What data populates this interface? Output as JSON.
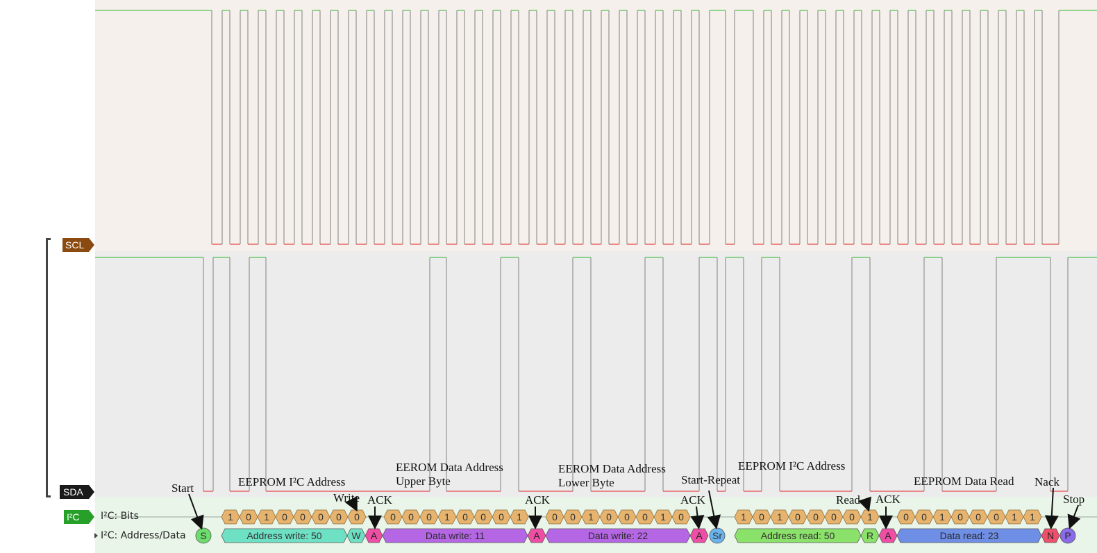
{
  "channels": {
    "scl": "SCL",
    "sda": "SDA",
    "protocol": "I²C"
  },
  "rows": {
    "bits": "I²C: Bits",
    "addr_data": "I²C: Address/Data"
  },
  "colors": {
    "scl_bg": "#f5f0eb",
    "sda_bg": "#ececec",
    "decode_bg": "#e8f5e8",
    "high_line": "#2db82d",
    "low_line": "#e02020",
    "edge": "#808080",
    "bit_cell": "#e6b46e",
    "ack": "#ee4fa5",
    "nack": "#ee4f6a",
    "start": "#6ddc6d",
    "repeat_start": "#6ab3ec",
    "stop": "#8a6be8",
    "addr_write": "#6ee0c4",
    "data_write": "#b566e4",
    "addr_read": "#8be26a",
    "data_read": "#6f8ee6",
    "tag_scl": "#8b4a0f",
    "tag_sda": "#1a1a1a",
    "tag_i2c": "#27a02a"
  },
  "bit_segments": [
    {
      "bits": [
        "1",
        "0",
        "1",
        "0",
        "0",
        "0",
        "0"
      ]
    },
    {
      "bits": [
        "0"
      ]
    },
    {
      "bits": [
        "0",
        "0",
        "0",
        "1",
        "0",
        "0",
        "0",
        "1"
      ]
    },
    {
      "bits": [
        "0",
        "0",
        "1",
        "0",
        "0",
        "0",
        "1",
        "0"
      ]
    },
    {
      "bits": [
        "1",
        "0",
        "1",
        "0",
        "0",
        "0",
        "0"
      ]
    },
    {
      "bits": [
        "1"
      ]
    },
    {
      "bits": [
        "0",
        "0",
        "1",
        "0",
        "0",
        "0",
        "1",
        "1"
      ]
    }
  ],
  "frames": [
    {
      "kind": "start",
      "label": "S"
    },
    {
      "kind": "addr_write",
      "label": "Address write: 50"
    },
    {
      "kind": "rw",
      "label": "W"
    },
    {
      "kind": "ack",
      "label": "A"
    },
    {
      "kind": "data_write",
      "label": "Data write: 11"
    },
    {
      "kind": "ack",
      "label": "A"
    },
    {
      "kind": "data_write",
      "label": "Data write: 22"
    },
    {
      "kind": "ack",
      "label": "A"
    },
    {
      "kind": "repeat_start",
      "label": "Sr"
    },
    {
      "kind": "addr_read",
      "label": "Address read: 50"
    },
    {
      "kind": "rw",
      "label": "R"
    },
    {
      "kind": "ack",
      "label": "A"
    },
    {
      "kind": "data_read",
      "label": "Data read: 23"
    },
    {
      "kind": "nack",
      "label": "N"
    },
    {
      "kind": "stop",
      "label": "P"
    }
  ],
  "annotations": [
    "Start",
    "EEPROM I²C Address",
    "Write",
    "ACK",
    "EEROM Data Address",
    "Upper Byte",
    "ACK",
    "EEROM Data Address",
    "Lower Byte",
    "ACK",
    "Start-Repeat",
    "EEPROM I²C Address",
    "Read",
    "ACK",
    "EEPROM Data Read",
    "Nack",
    "Stop"
  ]
}
